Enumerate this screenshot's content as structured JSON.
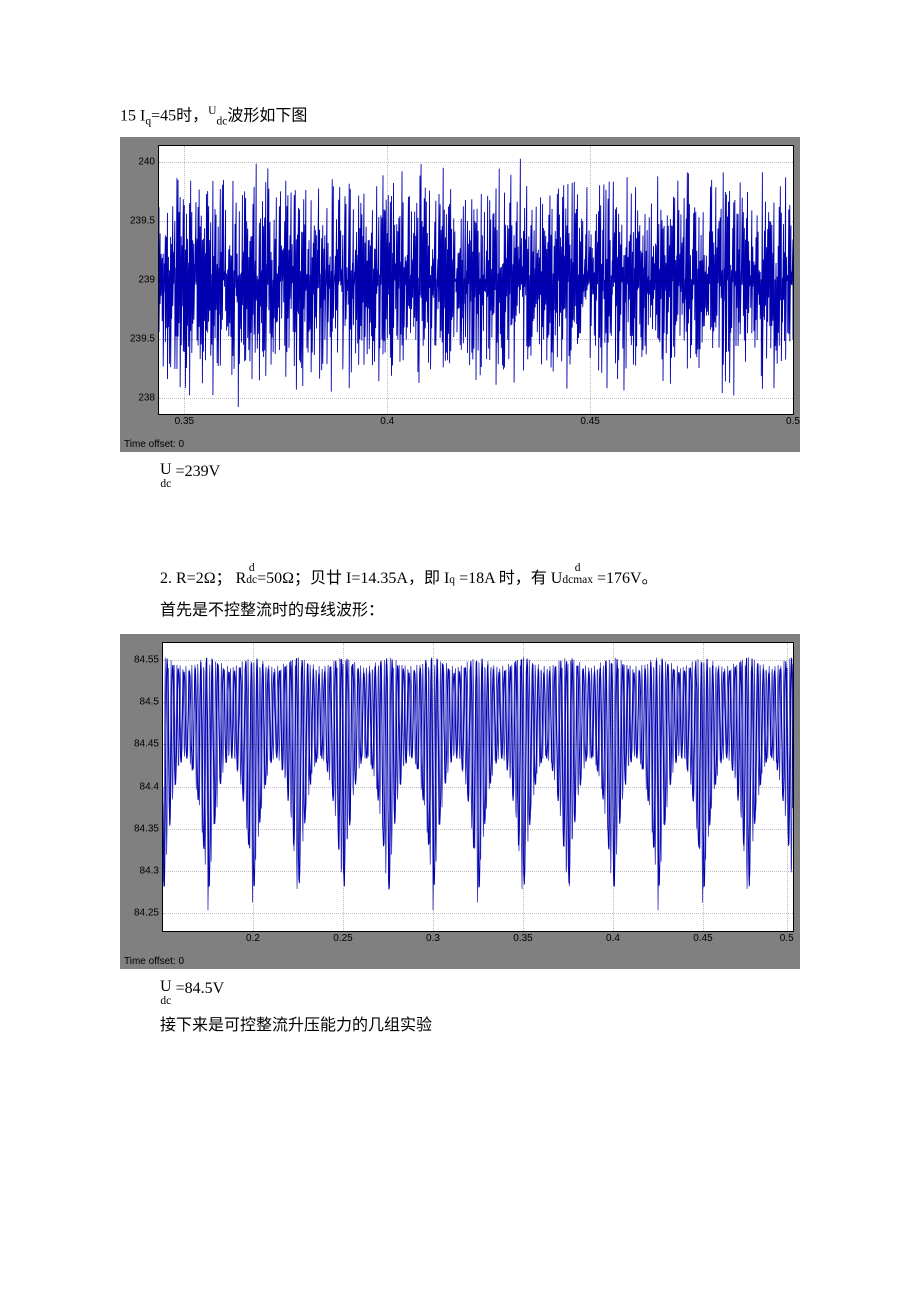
{
  "line1": {
    "prefix": "15 I",
    "sub1": "q",
    "mid": "=45时，",
    "usup": "U",
    "sub2": "dc",
    "suffix": "波形如下图"
  },
  "chart1": {
    "bg": "#808080",
    "plot_bg": "#ffffff",
    "line_color": "#0000b0",
    "yticks": [
      "240",
      "239.5",
      "239",
      "239.5",
      "238"
    ],
    "xticks": [
      "0.35",
      "0.4",
      "0.45",
      "0.5"
    ],
    "time_offset": "Time offset:   0",
    "noise_center": 0.5,
    "noise_amp": 0.46,
    "segments": 600
  },
  "caption1": {
    "U": "U",
    "sub": "dc",
    "eq": " =239V"
  },
  "line2a": {
    "prefix": "2. R=2Ω；  R",
    "sub1": "d",
    "sub1b": "dc",
    "mid1": "=50Ω；贝廿 I=14.35A，即 I",
    "sub2": "q",
    "mid2": " =18A 时，有 U",
    "sub3": "d",
    "sub3b": "dcmax",
    "suffix": " =176V。"
  },
  "line2b": "首先是不控整流时的母线波形：",
  "chart2": {
    "bg": "#808080",
    "plot_bg": "#ffffff",
    "line_color": "#0000b0",
    "yticks": [
      "84.55",
      "84.5",
      "84.45",
      "84.4",
      "84.35",
      "84.3",
      "84.25"
    ],
    "xticks": [
      "0.2",
      "0.25",
      "0.3",
      "0.35",
      "0.4",
      "0.45",
      "0.5"
    ],
    "time_offset": "Time offset:   0",
    "periods": 14,
    "sub_osc": 8,
    "segments": 1400
  },
  "caption2": {
    "U": "U",
    "sub": "dc",
    "eq": " =84.5V"
  },
  "line3": "接下来是可控整流升压能力的几组实验"
}
